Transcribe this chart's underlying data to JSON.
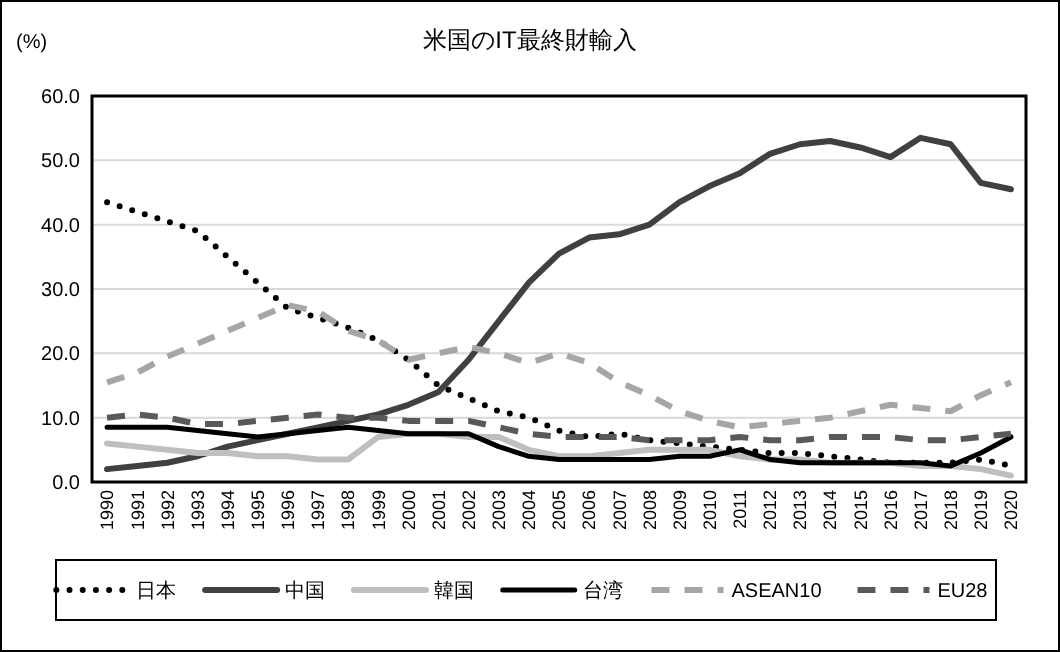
{
  "chart_data": {
    "type": "line",
    "title": "米国のIT最終財輸入",
    "ylabel": "(%)",
    "categories": [
      "1990",
      "1991",
      "1992",
      "1993",
      "1994",
      "1995",
      "1996",
      "1997",
      "1998",
      "1999",
      "2000",
      "2001",
      "2002",
      "2003",
      "2004",
      "2005",
      "2006",
      "2007",
      "2008",
      "2009",
      "2010",
      "2011",
      "2012",
      "2013",
      "2014",
      "2015",
      "2016",
      "2017",
      "2018",
      "2019",
      "2020"
    ],
    "ylim": [
      0,
      60
    ],
    "yticks": [
      {
        "value": 0,
        "label": "0.0"
      },
      {
        "value": 10,
        "label": "10.0"
      },
      {
        "value": 20,
        "label": "20.0"
      },
      {
        "value": 30,
        "label": "30.0"
      },
      {
        "value": 40,
        "label": "40.0"
      },
      {
        "value": 50,
        "label": "50.0"
      },
      {
        "value": 60,
        "label": "60.0"
      }
    ],
    "grid": "y",
    "legend": "bottom",
    "series": [
      {
        "name": "日本",
        "color": "#000000",
        "line_style": "dotted",
        "values": [
          43.5,
          42,
          40.5,
          39,
          35,
          31,
          27,
          25.5,
          24,
          22,
          19,
          15,
          13,
          11,
          10,
          8,
          7,
          7.5,
          6.5,
          6,
          5.5,
          5,
          4.5,
          4.5,
          4,
          3.5,
          3,
          3,
          3,
          3.5,
          2.5
        ]
      },
      {
        "name": "中国",
        "color": "#404040",
        "line_style": "solid",
        "values": [
          2,
          2.5,
          3,
          4,
          5.5,
          6.5,
          7.5,
          8.5,
          9.5,
          10.5,
          12,
          14,
          19,
          25,
          31,
          35.5,
          38,
          38.5,
          40,
          43.5,
          46,
          48,
          51,
          52.5,
          53,
          52,
          50.5,
          53.5,
          52.5,
          46.5,
          45.5
        ]
      },
      {
        "name": "韓国",
        "color": "#bfbfbf",
        "line_style": "solid",
        "values": [
          6,
          5.5,
          5,
          4.5,
          4.5,
          4,
          4,
          3.5,
          3.5,
          7,
          7.5,
          7.5,
          7,
          7,
          5,
          4,
          4,
          4.5,
          5,
          5,
          5,
          4,
          3.5,
          3.5,
          3,
          3,
          3,
          2.5,
          2.5,
          2,
          1
        ]
      },
      {
        "name": "台湾",
        "color": "#000000",
        "line_style": "solid",
        "values": [
          8.5,
          8.5,
          8.5,
          8,
          7.5,
          7,
          7.5,
          8,
          8.5,
          8,
          7.5,
          7.5,
          7.5,
          5.5,
          4,
          3.5,
          3.5,
          3.5,
          3.5,
          4,
          4,
          5,
          3.5,
          3,
          3,
          3,
          3,
          3,
          2.5,
          4.5,
          7
        ]
      },
      {
        "name": "ASEAN10",
        "color": "#a6a6a6",
        "line_style": "dashed",
        "values": [
          15.5,
          17,
          19.5,
          21.5,
          23.5,
          25.5,
          27.5,
          26.5,
          23.5,
          22,
          19,
          20,
          21,
          20,
          18.5,
          20,
          18.5,
          15.5,
          13.5,
          11,
          9.5,
          8.5,
          9,
          9.5,
          10,
          11,
          12,
          11.5,
          11,
          13.5,
          15.5
        ]
      },
      {
        "name": "EU28",
        "color": "#595959",
        "line_style": "dashed",
        "values": [
          10,
          10.5,
          10,
          9,
          9,
          9.5,
          10,
          10.5,
          10,
          10,
          9.5,
          9.5,
          9.5,
          8.5,
          7.5,
          7,
          7,
          7,
          6.5,
          6.5,
          6.5,
          7,
          6.5,
          6.5,
          7,
          7,
          7,
          6.5,
          6.5,
          7,
          7.5
        ]
      }
    ]
  }
}
